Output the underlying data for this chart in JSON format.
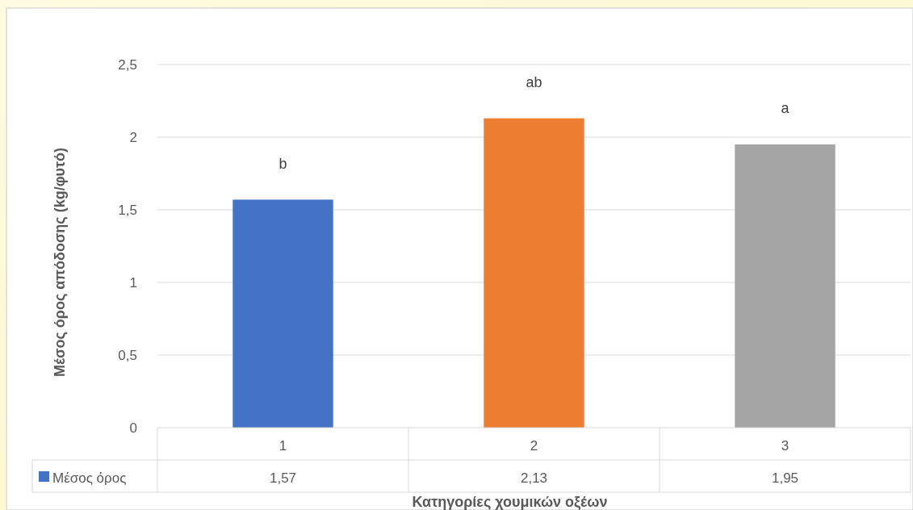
{
  "chart_data": {
    "type": "bar",
    "xlabel": "Κατηγορίες χουμικών οξέων",
    "ylabel": "Μέσος όρος απόδοσης (kg/φυτό)",
    "categories": [
      "1",
      "2",
      "3"
    ],
    "series": [
      {
        "name": "Μέσος όρος",
        "color": "#4472c4",
        "colors": [
          "#4472c4",
          "#ed7d31",
          "#a5a5a5"
        ],
        "values": [
          1.57,
          2.13,
          1.95
        ],
        "value_labels": [
          "1,57",
          "2,13",
          "1,95"
        ]
      }
    ],
    "ylim": [
      0,
      2.5
    ],
    "yticks": [
      {
        "value": 0,
        "label": "0"
      },
      {
        "value": 0.5,
        "label": "0,5"
      },
      {
        "value": 1,
        "label": "1"
      },
      {
        "value": 1.5,
        "label": "1,5"
      },
      {
        "value": 2,
        "label": "2"
      },
      {
        "value": 2.5,
        "label": "2,5"
      }
    ],
    "grid": "y",
    "legend": "bottom",
    "annotations": [
      "b",
      "ab",
      "a"
    ]
  }
}
